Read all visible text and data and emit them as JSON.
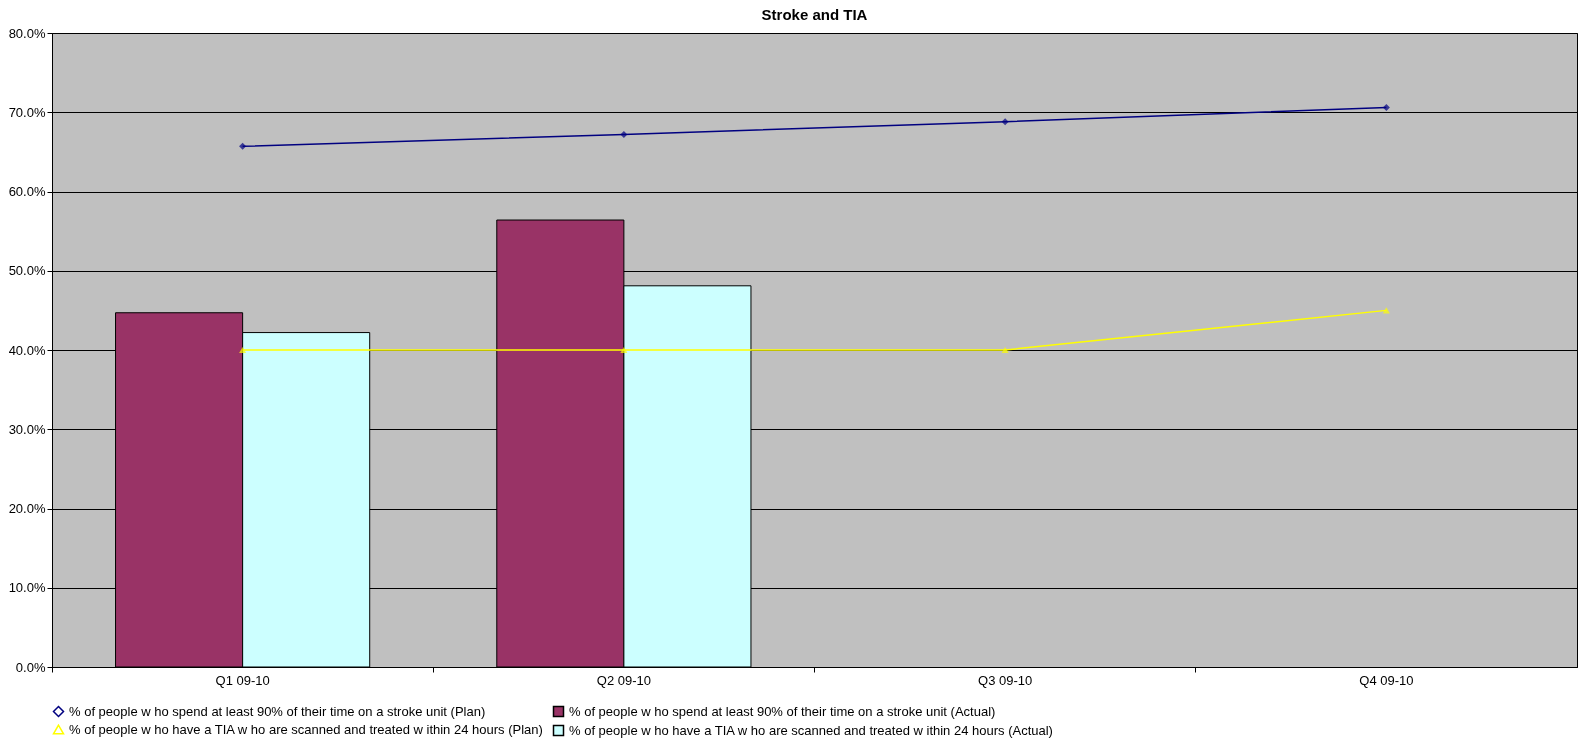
{
  "chart_data": {
    "type": "bar",
    "title": "Stroke and TIA",
    "categories": [
      "Q1 09-10",
      "Q2 09-10",
      "Q3 09-10",
      "Q4 09-10"
    ],
    "series": [
      {
        "name": "% of people w ho spend at least 90% of their time on a stroke unit (Actual)",
        "color": "#993366",
        "values": [
          44.7,
          56.4,
          null,
          null
        ]
      },
      {
        "name": "% of people w ho have a TIA w ho are scanned and treated w ithin 24 hours (Actual)",
        "color": "#ccffff",
        "values": [
          42.2,
          48.1,
          null,
          null
        ]
      },
      {
        "name": "% of people w ho spend at least 90% of their time on a stroke unit (Plan)",
        "type": "line",
        "marker": "diamond",
        "color": "#000080",
        "values": [
          65.7,
          67.2,
          68.8,
          70.6
        ]
      },
      {
        "name": "% of people w ho have a TIA w ho are scanned and treated w ithin 24 hours (Plan)",
        "type": "line",
        "marker": "triangle",
        "color": "#ffff00",
        "values": [
          40,
          40,
          40,
          45
        ]
      }
    ],
    "ylim": [
      0,
      80
    ],
    "yticks": [
      {
        "value": 0,
        "label": "0.0%"
      },
      {
        "value": 10,
        "label": "10.0%"
      },
      {
        "value": 20,
        "label": "20.0%"
      },
      {
        "value": 30,
        "label": "30.0%"
      },
      {
        "value": 40,
        "label": "40.0%"
      },
      {
        "value": 50,
        "label": "50.0%"
      },
      {
        "value": 60,
        "label": "60.0%"
      },
      {
        "value": 70,
        "label": "70.0%"
      },
      {
        "value": 80,
        "label": "80.0%"
      }
    ],
    "grid": "y",
    "legend": "bottom"
  }
}
